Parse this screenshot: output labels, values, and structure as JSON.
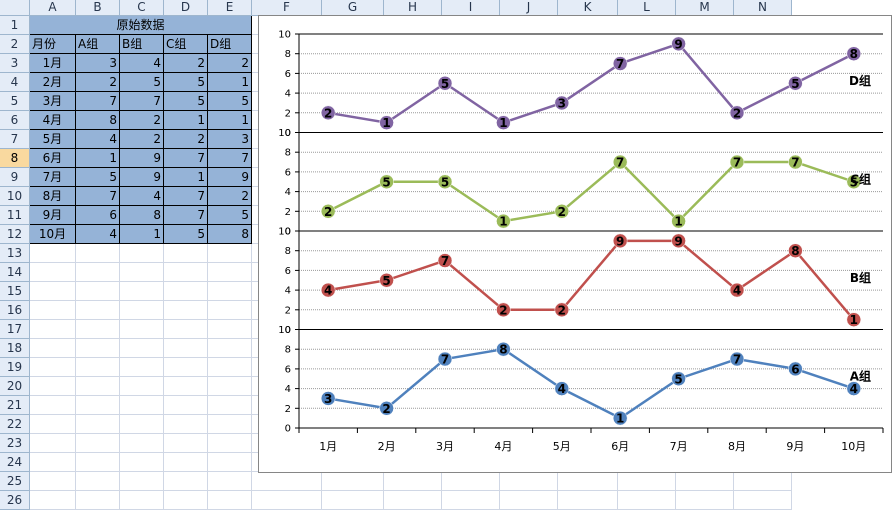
{
  "sheet": {
    "columns": [
      "A",
      "B",
      "C",
      "D",
      "E",
      "F",
      "G",
      "H",
      "I",
      "J",
      "K",
      "L",
      "M",
      "N"
    ],
    "rows": [
      "1",
      "2",
      "3",
      "4",
      "5",
      "6",
      "7",
      "8",
      "9",
      "10",
      "11",
      "12",
      "13",
      "14",
      "15",
      "16",
      "17",
      "18",
      "19",
      "20",
      "21",
      "22",
      "23",
      "24",
      "25",
      "26"
    ],
    "selected_row": "8",
    "title": "原始数据",
    "headers": [
      "月份",
      "A组",
      "B组",
      "C组",
      "D组"
    ],
    "data_rows": [
      [
        "1月",
        "3",
        "4",
        "2",
        "2"
      ],
      [
        "2月",
        "2",
        "5",
        "5",
        "1"
      ],
      [
        "3月",
        "7",
        "7",
        "5",
        "5"
      ],
      [
        "4月",
        "8",
        "2",
        "1",
        "1"
      ],
      [
        "5月",
        "4",
        "2",
        "2",
        "3"
      ],
      [
        "6月",
        "1",
        "9",
        "7",
        "7"
      ],
      [
        "7月",
        "5",
        "9",
        "1",
        "9"
      ],
      [
        "8月",
        "7",
        "4",
        "7",
        "2"
      ],
      [
        "9月",
        "6",
        "8",
        "7",
        "5"
      ],
      [
        "10月",
        "4",
        "1",
        "5",
        "8"
      ]
    ]
  },
  "chart_data": {
    "type": "line",
    "categories": [
      "1月",
      "2月",
      "3月",
      "4月",
      "5月",
      "6月",
      "7月",
      "8月",
      "9月",
      "10月"
    ],
    "ylim": [
      0,
      10
    ],
    "yticks": [
      "0",
      "2",
      "4",
      "6",
      "8",
      "10"
    ],
    "grid": true,
    "series": [
      {
        "name": "D组",
        "values": [
          2,
          1,
          5,
          1,
          3,
          7,
          9,
          2,
          5,
          8
        ],
        "color": "#8064a2"
      },
      {
        "name": "C组",
        "values": [
          2,
          5,
          5,
          1,
          2,
          7,
          1,
          7,
          7,
          5
        ],
        "color": "#9bbb59"
      },
      {
        "name": "B组",
        "values": [
          4,
          5,
          7,
          2,
          2,
          9,
          9,
          4,
          8,
          1
        ],
        "color": "#c0504d"
      },
      {
        "name": "A组",
        "values": [
          3,
          2,
          7,
          8,
          4,
          1,
          5,
          7,
          6,
          4
        ],
        "color": "#4f81bd"
      }
    ]
  }
}
